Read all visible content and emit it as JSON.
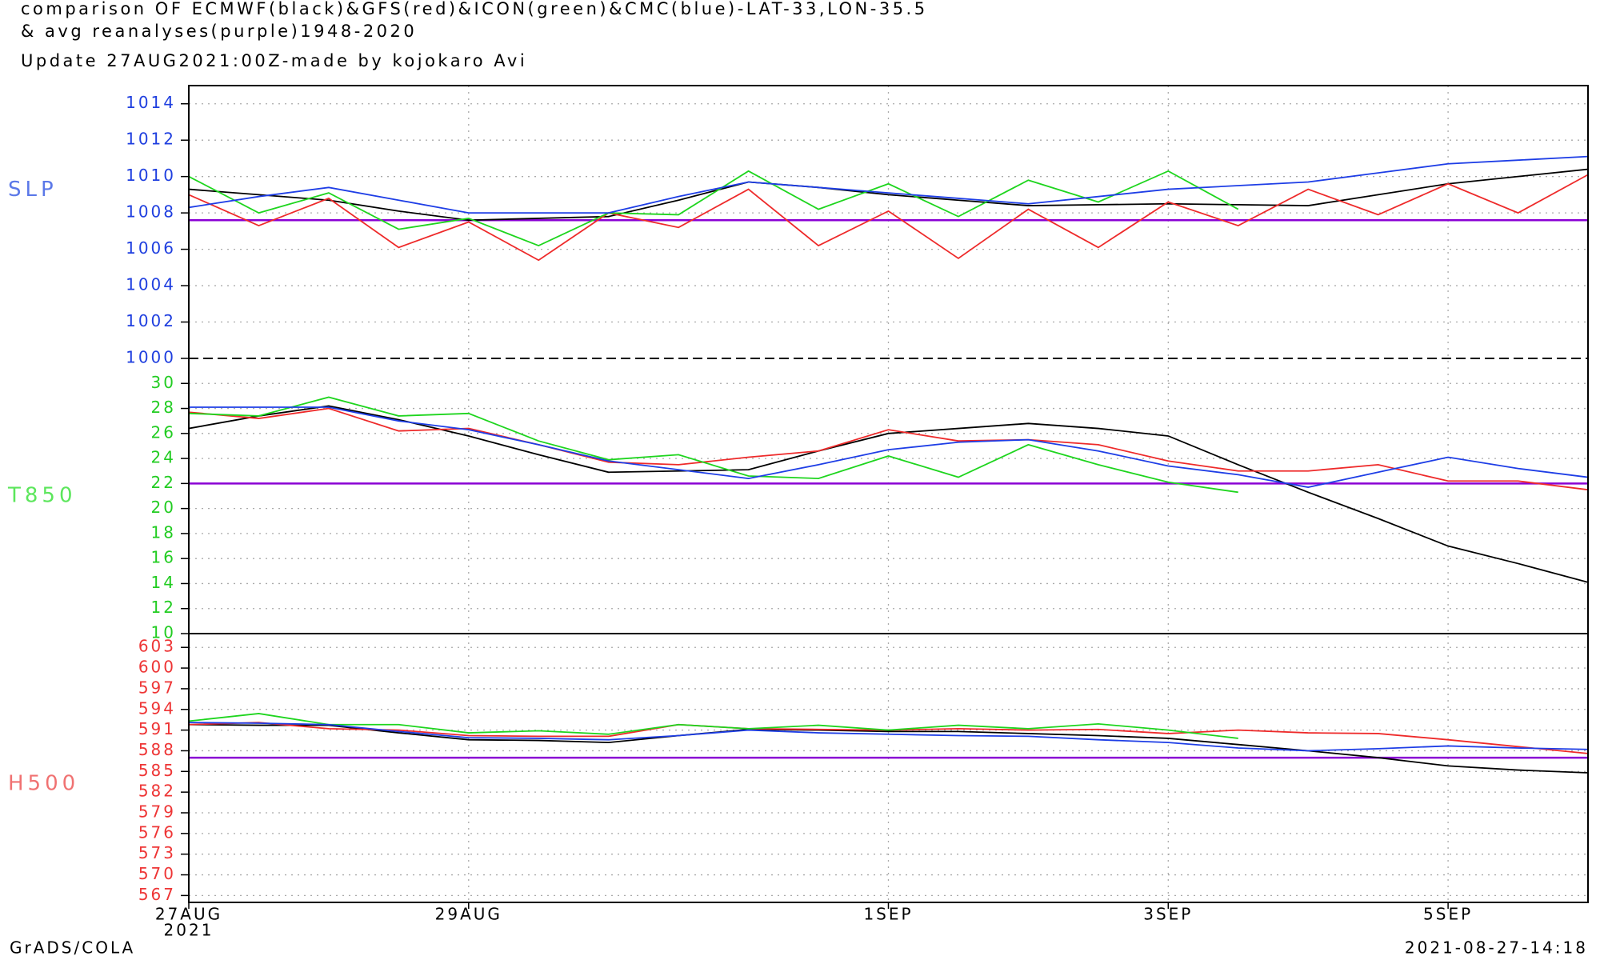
{
  "header": {
    "lines": [
      "comparison OF ECMWF(black)&GFS(red)&ICON(green)&CMC(blue)-LAT-33,LON-35.5",
      "& avg reanalyses(purple)1948-2020",
      "Update  27AUG2021:00Z-made by kojokaro Avi"
    ]
  },
  "footer": {
    "left": "GrADS/COLA",
    "right": "2021-08-27-14:18"
  },
  "chart_data": [
    {
      "type": "line",
      "ylabel": "SLP",
      "ylabel_color": "#5b78e8",
      "tick_color": "#1f3fdf",
      "ylim": [
        1000,
        1015
      ],
      "yticks": [
        1000,
        1002,
        1004,
        1006,
        1008,
        1010,
        1012,
        1014
      ],
      "grid": true,
      "reference_line": {
        "value": 1007.6,
        "color": "#8a00d4"
      },
      "series": [
        {
          "color": "#000000",
          "values": [
            1009.3,
            1009.0,
            1008.7,
            1008.1,
            1007.6,
            1007.7,
            1007.8,
            1008.7,
            1009.7,
            1009.4,
            1009.0,
            1008.7,
            1008.4,
            1008.45,
            1008.5,
            1008.45,
            1008.4,
            1009.0,
            1009.6,
            1010.0,
            1010.4
          ]
        },
        {
          "color": "#ee2a2a",
          "values": [
            1009.0,
            1007.3,
            1008.8,
            1006.1,
            1007.5,
            1005.4,
            1008.0,
            1007.2,
            1009.3,
            1006.2,
            1008.1,
            1005.5,
            1008.2,
            1006.1,
            1008.6,
            1007.3,
            1009.3,
            1007.9,
            1009.6,
            1008.0,
            1010.1
          ]
        },
        {
          "color": "#1ed51e",
          "values": [
            1010.0,
            1008.0,
            1009.1,
            1007.1,
            1007.7,
            1006.2,
            1008.0,
            1007.9,
            1010.3,
            1008.2,
            1009.6,
            1007.8,
            1009.8,
            1008.6,
            1010.3,
            1008.2,
            null,
            null,
            null,
            null,
            null
          ]
        },
        {
          "color": "#1e3ee6",
          "values": [
            1008.3,
            1008.9,
            1009.4,
            1008.7,
            1008.0,
            1008.0,
            1008.0,
            1008.9,
            1009.7,
            1009.4,
            1009.1,
            1008.8,
            1008.5,
            1008.9,
            1009.3,
            1009.5,
            1009.7,
            1010.2,
            1010.7,
            1010.9,
            1011.1
          ]
        }
      ]
    },
    {
      "type": "line",
      "ylabel": "T850",
      "ylabel_color": "#5ce65c",
      "tick_color": "#22cc22",
      "ylim": [
        10,
        32
      ],
      "yticks": [
        10,
        12,
        14,
        16,
        18,
        20,
        22,
        24,
        26,
        28,
        30
      ],
      "grid": true,
      "reference_line": {
        "value": 22,
        "color": "#8a00d4"
      },
      "series": [
        {
          "color": "#000000",
          "values": [
            26.4,
            27.4,
            28.2,
            27.1,
            25.8,
            24.3,
            22.9,
            23.0,
            23.1,
            24.6,
            26.0,
            26.4,
            26.8,
            26.4,
            25.8,
            23.5,
            21.3,
            19.2,
            17.0,
            15.6,
            14.1
          ]
        },
        {
          "color": "#ee2a2a",
          "values": [
            27.7,
            27.2,
            28.0,
            26.2,
            26.4,
            25.1,
            23.7,
            23.5,
            24.1,
            24.6,
            26.3,
            25.4,
            25.5,
            25.1,
            23.8,
            23.0,
            23.0,
            23.5,
            22.2,
            22.2,
            21.5
          ]
        },
        {
          "color": "#1ed51e",
          "values": [
            27.6,
            27.4,
            28.9,
            27.4,
            27.6,
            25.4,
            23.9,
            24.3,
            22.6,
            22.4,
            24.2,
            22.5,
            25.1,
            23.5,
            22.1,
            21.3,
            null,
            null,
            null,
            null,
            null
          ]
        },
        {
          "color": "#1e3ee6",
          "values": [
            28.1,
            28.1,
            28.1,
            27.0,
            26.3,
            25.1,
            23.8,
            23.1,
            22.4,
            23.5,
            24.7,
            25.3,
            25.5,
            24.6,
            23.4,
            22.7,
            21.7,
            22.9,
            24.1,
            23.2,
            22.5
          ]
        }
      ]
    },
    {
      "type": "line",
      "ylabel": "H500",
      "ylabel_color": "#f07272",
      "tick_color": "#ee3535",
      "ylim": [
        566,
        605
      ],
      "yticks": [
        567,
        570,
        573,
        576,
        579,
        582,
        585,
        588,
        591,
        594,
        597,
        600,
        603
      ],
      "grid": true,
      "reference_line": {
        "value": 587,
        "color": "#8a00d4"
      },
      "categories": [
        "27AUG",
        null,
        null,
        null,
        "29AUG",
        null,
        null,
        null,
        null,
        null,
        "1SEP",
        null,
        null,
        null,
        "3SEP",
        null,
        null,
        null,
        "5SEP",
        null,
        null
      ],
      "x_sublabel": "2021",
      "series": [
        {
          "color": "#000000",
          "values": [
            591.8,
            591.7,
            591.7,
            590.6,
            589.6,
            589.5,
            589.2,
            590.2,
            591.1,
            591.0,
            590.8,
            590.8,
            590.5,
            590.2,
            589.8,
            588.9,
            588.0,
            587.0,
            585.8,
            585.2,
            584.8
          ]
        },
        {
          "color": "#ee2a2a",
          "values": [
            591.8,
            592.1,
            591.2,
            591.0,
            590.2,
            590.1,
            590.1,
            591.8,
            591.2,
            591.1,
            591.0,
            591.2,
            591.0,
            591.1,
            590.5,
            591.0,
            590.6,
            590.5,
            589.6,
            588.6,
            587.6
          ]
        },
        {
          "color": "#1ed51e",
          "values": [
            592.3,
            593.4,
            591.8,
            591.8,
            590.6,
            590.9,
            590.4,
            591.8,
            591.2,
            591.7,
            591.0,
            591.7,
            591.2,
            591.9,
            591.0,
            589.8,
            null,
            null,
            null,
            null,
            null
          ]
        },
        {
          "color": "#1e3ee6",
          "values": [
            592.1,
            592.0,
            591.8,
            590.8,
            589.9,
            589.8,
            589.6,
            590.2,
            591.0,
            590.6,
            590.4,
            590.2,
            590.1,
            589.6,
            589.2,
            588.4,
            588.0,
            588.3,
            588.7,
            588.4,
            588.2
          ]
        }
      ]
    }
  ]
}
